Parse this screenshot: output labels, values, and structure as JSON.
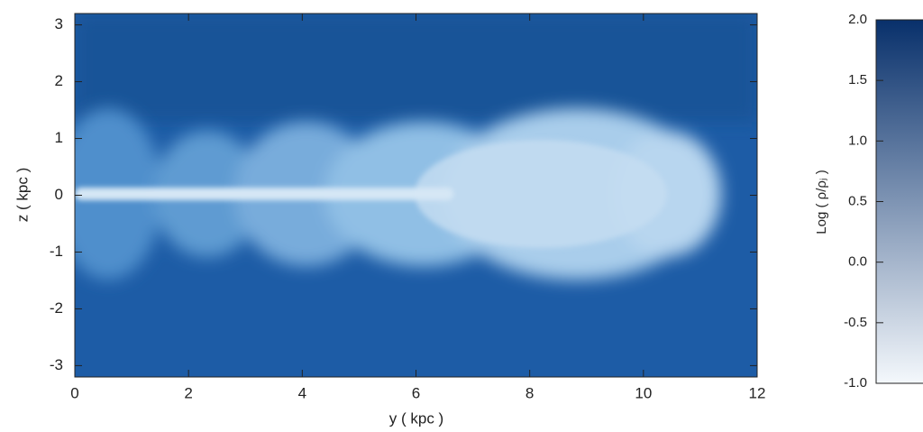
{
  "chart_data": {
    "type": "heatmap",
    "xlabel": "y ( kpc )",
    "ylabel": "z ( kpc )",
    "xlim": [
      0,
      12
    ],
    "xticks": [
      0,
      2,
      4,
      6,
      8,
      10,
      12
    ],
    "ylim": [
      -3.2,
      3.2
    ],
    "yticks": [
      -3,
      -2,
      -1,
      0,
      1,
      2,
      3
    ],
    "colorbar": {
      "label": "Log ( ρ/ρⱼ )",
      "lim": [
        -1,
        2
      ],
      "ticks": [
        {
          "value": -1,
          "label": "-1.0"
        },
        {
          "value": -0.5,
          "label": "-0.5"
        },
        {
          "value": 0,
          "label": "0.0"
        },
        {
          "value": 0.5,
          "label": "0.5"
        },
        {
          "value": 1,
          "label": "1.0"
        },
        {
          "value": 1.5,
          "label": "1.5"
        },
        {
          "value": 2,
          "label": "2.0"
        }
      ],
      "colors": [
        "#f4f8fc",
        "#08306b"
      ]
    }
  }
}
